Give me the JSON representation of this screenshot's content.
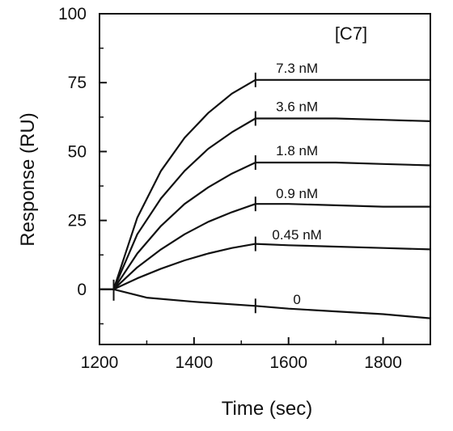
{
  "chart_data": {
    "type": "line",
    "title": "",
    "xlabel": "Time (sec)",
    "ylabel": "Response (RU)",
    "xlim": [
      1200,
      1900
    ],
    "ylim": [
      -20,
      100
    ],
    "xticks": [
      1200,
      1400,
      1600,
      1800
    ],
    "yticks": [
      0,
      25,
      50,
      75,
      100
    ],
    "grid": false,
    "legend_title": "[C7]",
    "legend_placement": "top-right",
    "injection_start": 1230,
    "injection_end": 1530,
    "series": [
      {
        "name": "7.3 nM",
        "label_x": 1700,
        "values": [
          [
            1200,
            0
          ],
          [
            1230,
            0
          ],
          [
            1280,
            26
          ],
          [
            1330,
            43
          ],
          [
            1380,
            55
          ],
          [
            1430,
            64
          ],
          [
            1480,
            71
          ],
          [
            1530,
            76
          ],
          [
            1600,
            76
          ],
          [
            1700,
            76
          ],
          [
            1800,
            76
          ],
          [
            1900,
            76
          ]
        ]
      },
      {
        "name": "3.6 nM",
        "label_x": 1700,
        "values": [
          [
            1200,
            0
          ],
          [
            1230,
            0
          ],
          [
            1280,
            20
          ],
          [
            1330,
            33
          ],
          [
            1380,
            43
          ],
          [
            1430,
            51
          ],
          [
            1480,
            57
          ],
          [
            1530,
            62
          ],
          [
            1600,
            62
          ],
          [
            1700,
            62
          ],
          [
            1800,
            61.5
          ],
          [
            1900,
            61
          ]
        ]
      },
      {
        "name": "1.8 nM",
        "label_x": 1700,
        "values": [
          [
            1200,
            0
          ],
          [
            1230,
            0
          ],
          [
            1280,
            13
          ],
          [
            1330,
            23
          ],
          [
            1380,
            31
          ],
          [
            1430,
            37
          ],
          [
            1480,
            42
          ],
          [
            1530,
            46
          ],
          [
            1600,
            46
          ],
          [
            1700,
            46
          ],
          [
            1800,
            45.5
          ],
          [
            1900,
            45
          ]
        ]
      },
      {
        "name": "0.9 nM",
        "label_x": 1700,
        "values": [
          [
            1200,
            0
          ],
          [
            1230,
            0
          ],
          [
            1280,
            8
          ],
          [
            1330,
            14.5
          ],
          [
            1380,
            20
          ],
          [
            1430,
            24.5
          ],
          [
            1480,
            28
          ],
          [
            1530,
            31
          ],
          [
            1600,
            31
          ],
          [
            1700,
            30.5
          ],
          [
            1800,
            30
          ],
          [
            1900,
            30
          ]
        ]
      },
      {
        "name": "0.45 nM",
        "label_x": 1700,
        "values": [
          [
            1200,
            0
          ],
          [
            1230,
            0
          ],
          [
            1280,
            4
          ],
          [
            1330,
            7.5
          ],
          [
            1380,
            10.5
          ],
          [
            1430,
            13
          ],
          [
            1480,
            15
          ],
          [
            1530,
            16.5
          ],
          [
            1600,
            16
          ],
          [
            1700,
            15.5
          ],
          [
            1800,
            15
          ],
          [
            1900,
            14.5
          ]
        ]
      },
      {
        "name": "0",
        "label_x": 1700,
        "values": [
          [
            1200,
            0
          ],
          [
            1230,
            0
          ],
          [
            1300,
            -3
          ],
          [
            1400,
            -4.5
          ],
          [
            1530,
            -6
          ],
          [
            1600,
            -7
          ],
          [
            1700,
            -8
          ],
          [
            1800,
            -9
          ],
          [
            1900,
            -10.5
          ]
        ]
      }
    ]
  }
}
